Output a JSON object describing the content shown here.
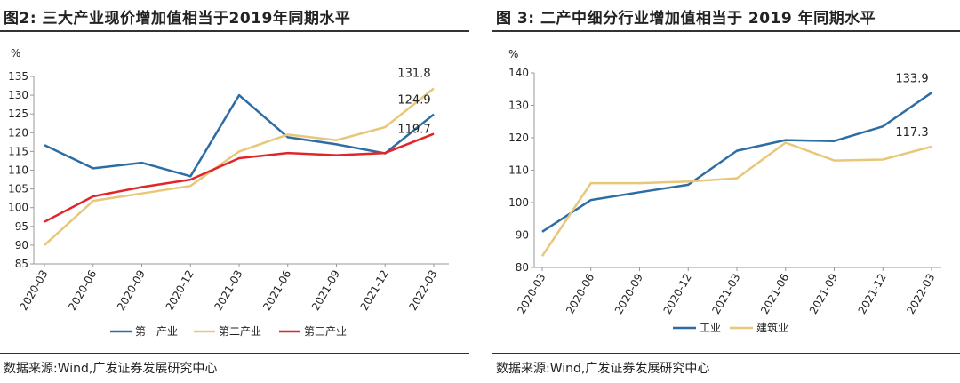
{
  "panels": [
    {
      "title": "图2:  三大产业现价增加值相当于2019年同期水平",
      "source": "数据来源:Wind,广发证券发展研究中心",
      "chart_data": {
        "type": "line",
        "unit": "%",
        "categories": [
          "2020-03",
          "2020-06",
          "2020-09",
          "2020-12",
          "2021-03",
          "2021-06",
          "2021-09",
          "2021-12",
          "2022-03"
        ],
        "ylim": [
          85,
          135
        ],
        "yticks": [
          85,
          90,
          95,
          100,
          105,
          110,
          115,
          120,
          125,
          130,
          135
        ],
        "grid": false,
        "legend_position": "bottom",
        "series": [
          {
            "name": "第一产业",
            "color": "#2e6da4",
            "values": [
              116.7,
              110.5,
              112.0,
              108.4,
              130.0,
              118.8,
              116.9,
              114.5,
              124.9
            ]
          },
          {
            "name": "第二产业",
            "color": "#e8c77a",
            "values": [
              90.0,
              101.8,
              103.8,
              105.8,
              115.0,
              119.5,
              118.0,
              121.5,
              131.8
            ]
          },
          {
            "name": "第三产业",
            "color": "#e0262a",
            "values": [
              96.2,
              103.0,
              105.5,
              107.5,
              113.2,
              114.6,
              114.0,
              114.6,
              119.7
            ]
          }
        ],
        "end_labels": [
          "124.9",
          "131.8",
          "119.7"
        ]
      }
    },
    {
      "title": "图 3:  二产中细分行业增加值相当于 2019 年同期水平",
      "source": "数据来源:Wind,广发证券发展研究中心",
      "chart_data": {
        "type": "line",
        "unit": "%",
        "categories": [
          "2020-03",
          "2020-06",
          "2020-09",
          "2020-12",
          "2021-03",
          "2021-06",
          "2021-09",
          "2021-12",
          "2022-03"
        ],
        "ylim": [
          80,
          140
        ],
        "yticks": [
          80,
          90,
          100,
          110,
          120,
          130,
          140
        ],
        "grid": false,
        "legend_position": "bottom",
        "series": [
          {
            "name": "工业",
            "color": "#2e6da4",
            "values": [
              91.0,
              100.8,
              103.2,
              105.5,
              116.0,
              119.3,
              119.0,
              123.5,
              133.9
            ]
          },
          {
            "name": "建筑业",
            "color": "#e8c77a",
            "values": [
              83.5,
              106.0,
              106.0,
              106.5,
              107.5,
              118.5,
              113.0,
              113.3,
              117.3
            ]
          }
        ],
        "end_labels": [
          "133.9",
          "117.3"
        ]
      }
    }
  ]
}
